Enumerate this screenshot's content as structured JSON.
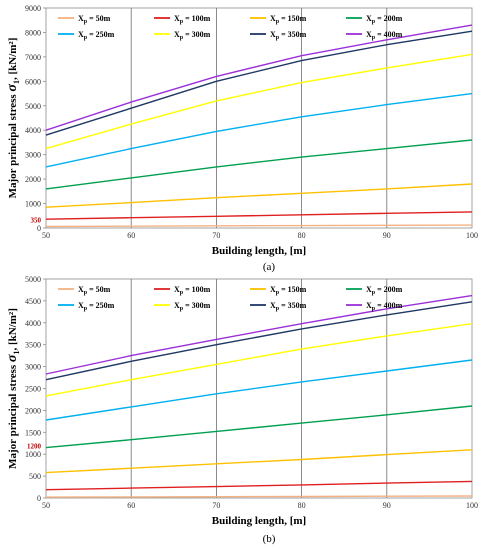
{
  "chart_data": [
    {
      "type": "line",
      "caption": "(a)",
      "xlabel": "Building length, [m]",
      "ylabel_prefix": "Major principal stress ",
      "ylabel_symbol": "σ",
      "ylabel_subscript": "1",
      "ylabel_unit": ", [kN/m²]",
      "xlim": [
        50,
        100
      ],
      "ylim": [
        0,
        9000
      ],
      "xticks": [
        50,
        60,
        70,
        80,
        90,
        100
      ],
      "yticks": [
        0,
        1000,
        2000,
        3000,
        4000,
        5000,
        6000,
        7000,
        8000,
        9000
      ],
      "grid": "vertical",
      "legend_position": "top-left",
      "annotation": {
        "text": "350",
        "y": 350
      },
      "series": [
        {
          "name": "Xp = 50m",
          "label_main": "X",
          "label_sub": "p",
          "label_rest": " = 50m",
          "color": "#f4b183",
          "x": [
            50,
            60,
            70,
            80,
            90,
            100
          ],
          "y": [
            60,
            75,
            90,
            100,
            110,
            120
          ]
        },
        {
          "name": "Xp = 100m",
          "label_main": "X",
          "label_sub": "p",
          "label_rest": " = 100m",
          "color": "#e02020",
          "x": [
            50,
            60,
            70,
            80,
            90,
            100
          ],
          "y": [
            360,
            420,
            480,
            540,
            600,
            660
          ]
        },
        {
          "name": "Xp = 150m",
          "label_main": "X",
          "label_sub": "p",
          "label_rest": " = 150m",
          "color": "#ffc000",
          "x": [
            50,
            60,
            70,
            80,
            90,
            100
          ],
          "y": [
            850,
            1040,
            1240,
            1420,
            1600,
            1800
          ]
        },
        {
          "name": "Xp = 200m",
          "label_main": "X",
          "label_sub": "p",
          "label_rest": " = 200m",
          "color": "#00a050",
          "x": [
            50,
            60,
            70,
            80,
            90,
            100
          ],
          "y": [
            1600,
            2050,
            2500,
            2900,
            3250,
            3600
          ]
        },
        {
          "name": "Xp = 250m",
          "label_main": "X",
          "label_sub": "p",
          "label_rest": " = 250m",
          "color": "#00b0f0",
          "x": [
            50,
            60,
            70,
            80,
            90,
            100
          ],
          "y": [
            2500,
            3250,
            3950,
            4550,
            5050,
            5500
          ]
        },
        {
          "name": "Xp = 300m",
          "label_main": "X",
          "label_sub": "p",
          "label_rest": " = 300m",
          "color": "#ffff00",
          "x": [
            50,
            60,
            70,
            80,
            90,
            100
          ],
          "y": [
            3250,
            4250,
            5200,
            5950,
            6550,
            7100
          ]
        },
        {
          "name": "Xp = 350m",
          "label_main": "X",
          "label_sub": "p",
          "label_rest": " = 350m",
          "color": "#1f3864",
          "x": [
            50,
            60,
            70,
            80,
            90,
            100
          ],
          "y": [
            3800,
            4900,
            6000,
            6850,
            7500,
            8050
          ]
        },
        {
          "name": "Xp = 400m",
          "label_main": "X",
          "label_sub": "p",
          "label_rest": " = 400m",
          "color": "#9b30d9",
          "x": [
            50,
            60,
            70,
            80,
            90,
            100
          ],
          "y": [
            4000,
            5150,
            6200,
            7050,
            7700,
            8300
          ]
        }
      ]
    },
    {
      "type": "line",
      "caption": "(b)",
      "xlabel": "Building length, [m]",
      "ylabel_prefix": "Major principal stress ",
      "ylabel_symbol": "σ",
      "ylabel_subscript": "1",
      "ylabel_unit": ", [kN/m²]",
      "xlim": [
        50,
        100
      ],
      "ylim": [
        0,
        5000
      ],
      "xticks": [
        50,
        60,
        70,
        80,
        90,
        100
      ],
      "yticks": [
        0,
        500,
        1000,
        1500,
        2000,
        2500,
        3000,
        3500,
        4000,
        4500,
        5000
      ],
      "grid": "vertical",
      "legend_position": "top-left",
      "annotation": {
        "text": "1200",
        "y": 1200
      },
      "series": [
        {
          "name": "Xp = 50m",
          "label_main": "X",
          "label_sub": "p",
          "label_rest": " = 50m",
          "color": "#f4b183",
          "x": [
            50,
            60,
            70,
            80,
            90,
            100
          ],
          "y": [
            20,
            25,
            30,
            35,
            40,
            45
          ]
        },
        {
          "name": "Xp = 100m",
          "label_main": "X",
          "label_sub": "p",
          "label_rest": " = 100m",
          "color": "#e02020",
          "x": [
            50,
            60,
            70,
            80,
            90,
            100
          ],
          "y": [
            190,
            225,
            260,
            300,
            340,
            380
          ]
        },
        {
          "name": "Xp = 150m",
          "label_main": "X",
          "label_sub": "p",
          "label_rest": " = 150m",
          "color": "#ffc000",
          "x": [
            50,
            60,
            70,
            80,
            90,
            100
          ],
          "y": [
            580,
            680,
            780,
            880,
            990,
            1100
          ]
        },
        {
          "name": "Xp = 200m",
          "label_main": "X",
          "label_sub": "p",
          "label_rest": " = 200m",
          "color": "#00a050",
          "x": [
            50,
            60,
            70,
            80,
            90,
            100
          ],
          "y": [
            1150,
            1330,
            1520,
            1710,
            1900,
            2100
          ]
        },
        {
          "name": "Xp = 250m",
          "label_main": "X",
          "label_sub": "p",
          "label_rest": " = 250m",
          "color": "#00b0f0",
          "x": [
            50,
            60,
            70,
            80,
            90,
            100
          ],
          "y": [
            1780,
            2080,
            2380,
            2650,
            2900,
            3150
          ]
        },
        {
          "name": "Xp = 300m",
          "label_main": "X",
          "label_sub": "p",
          "label_rest": " = 300m",
          "color": "#ffff00",
          "x": [
            50,
            60,
            70,
            80,
            90,
            100
          ],
          "y": [
            2330,
            2700,
            3050,
            3400,
            3700,
            3980
          ]
        },
        {
          "name": "Xp = 350m",
          "label_main": "X",
          "label_sub": "p",
          "label_rest": " = 350m",
          "color": "#1f3864",
          "x": [
            50,
            60,
            70,
            80,
            90,
            100
          ],
          "y": [
            2700,
            3120,
            3500,
            3860,
            4180,
            4480
          ]
        },
        {
          "name": "Xp = 400m",
          "label_main": "X",
          "label_sub": "p",
          "label_rest": " = 400m",
          "color": "#9b30d9",
          "x": [
            50,
            60,
            70,
            80,
            90,
            100
          ],
          "y": [
            2830,
            3250,
            3620,
            3980,
            4320,
            4620
          ]
        }
      ]
    }
  ]
}
